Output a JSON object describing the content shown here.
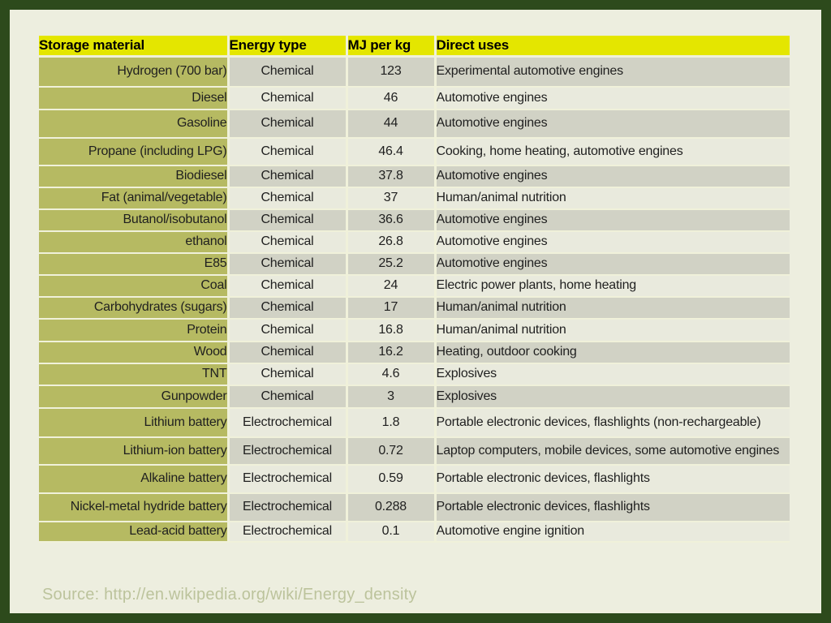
{
  "table": {
    "headers": [
      "Storage material",
      "Energy type",
      "MJ per kg",
      "Direct uses"
    ],
    "rows": [
      [
        "Hydrogen (700 bar)",
        "Chemical",
        "123",
        "Experimental automotive engines"
      ],
      [
        "Diesel",
        "Chemical",
        "46",
        "Automotive engines"
      ],
      [
        "Gasoline",
        "Chemical",
        "44",
        "Automotive engines"
      ],
      [
        "Propane (including LPG)",
        "Chemical",
        "46.4",
        "Cooking, home heating, automotive engines"
      ],
      [
        "Biodiesel",
        "Chemical",
        "37.8",
        "Automotive engines"
      ],
      [
        "Fat (animal/vegetable)",
        "Chemical",
        "37",
        "Human/animal nutrition"
      ],
      [
        "Butanol/isobutanol",
        "Chemical",
        "36.6",
        "Automotive engines"
      ],
      [
        "ethanol",
        "Chemical",
        "26.8",
        "Automotive engines"
      ],
      [
        "E85",
        "Chemical",
        "25.2",
        "Automotive engines"
      ],
      [
        "Coal",
        "Chemical",
        "24",
        "Electric power plants, home heating"
      ],
      [
        "Carbohydrates (sugars)",
        "Chemical",
        "17",
        "Human/animal nutrition"
      ],
      [
        "Protein",
        "Chemical",
        "16.8",
        "Human/animal nutrition"
      ],
      [
        "Wood",
        "Chemical",
        "16.2",
        "Heating, outdoor cooking"
      ],
      [
        "TNT",
        "Chemical",
        "4.6",
        "Explosives"
      ],
      [
        "Gunpowder",
        "Chemical",
        "3",
        "Explosives"
      ],
      [
        "Lithium battery",
        "Electrochemical",
        "1.8",
        "Portable electronic devices, flashlights (non-rechargeable)"
      ],
      [
        "Lithium-ion battery",
        "Electrochemical",
        "0.72",
        "Laptop computers, mobile devices, some automotive engines"
      ],
      [
        "Alkaline battery",
        "Electrochemical",
        "0.59",
        "Portable electronic devices, flashlights"
      ],
      [
        "Nickel-metal hydride battery",
        "Electrochemical",
        "0.288",
        "Portable electronic devices, flashlights"
      ],
      [
        "Lead-acid battery",
        "Electrochemical",
        "0.1",
        "Automotive engine ignition"
      ]
    ]
  },
  "source_text": "Source: http://en.wikipedia.org/wiki/Energy_density",
  "colors": {
    "frame": "#2d4a1c",
    "background": "#edeedf",
    "header_bg": "#e4e600",
    "material_col_bg": "#b6ba62",
    "row_dark": "#d1d2c5",
    "row_light": "#e9eadd",
    "separator": "#f0f1da",
    "text": "#1f1f1f",
    "source_text_color": "#bcc39c"
  }
}
